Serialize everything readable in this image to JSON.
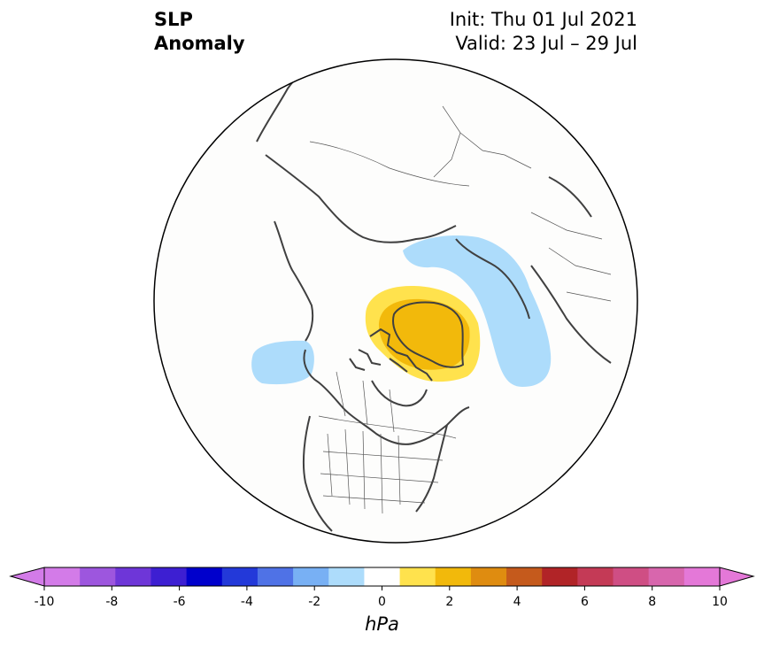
{
  "title": {
    "left_line1": "SLP",
    "left_line2": "Anomaly",
    "init": "Init: Thu 01 Jul 2021",
    "valid": "Valid: 23 Jul – 29 Jul"
  },
  "colorbar": {
    "unit_label": "hPa",
    "tick_labels": [
      "-10",
      "-8",
      "-6",
      "-4",
      "-2",
      "0",
      "2",
      "4",
      "6",
      "8",
      "10"
    ],
    "levels": [
      -10,
      -9,
      -8,
      -7,
      -6,
      -5,
      -4,
      -3,
      -2,
      -1,
      1,
      2,
      3,
      4,
      5,
      6,
      7,
      8,
      9,
      10
    ],
    "colors": [
      "#d37be8",
      "#9d56de",
      "#6e36d8",
      "#3d1fd2",
      "#0000cc",
      "#2339d9",
      "#4f72e6",
      "#78b0f4",
      "#addcfb",
      "#ffffff",
      "#ffe24d",
      "#f2b90b",
      "#df8c10",
      "#c55a1c",
      "#b12427",
      "#c43a56",
      "#cf4e84",
      "#d866ad",
      "#e478d8"
    ],
    "extend_min_color": "#d37be8",
    "extend_max_color": "#e478d8"
  },
  "map": {
    "projection": "north-polar-stereographic",
    "background_color": "#fdfdfc",
    "coastline_color": "#404040",
    "anomaly_features": [
      {
        "sign": "positive",
        "level": "1 to 2 hPa",
        "color": "#ffe24d",
        "region": "Greenland / Canadian Arctic Archipelago"
      },
      {
        "sign": "positive",
        "level": "2 to 3 hPa",
        "color": "#f2b90b",
        "region": "Greenland / Baffin Bay"
      },
      {
        "sign": "negative",
        "level": "-2 to -1 hPa",
        "color": "#addcfb",
        "region": "Barents Sea to Kara Sea to North Atlantic"
      },
      {
        "sign": "negative",
        "level": "-2 to -1 hPa",
        "color": "#addcfb",
        "region": "Gulf of Alaska"
      }
    ]
  }
}
